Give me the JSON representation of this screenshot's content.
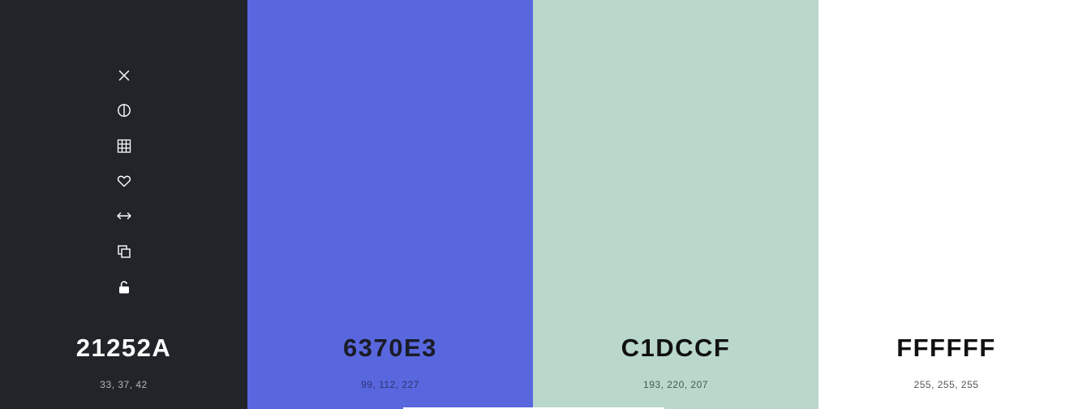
{
  "swatches": [
    {
      "hex": "21252A",
      "rgb": "33, 37, 42",
      "color": "#21252A"
    },
    {
      "hex": "6370E3",
      "rgb": "99, 112, 227",
      "color": "#6370E3"
    },
    {
      "hex": "C1DCCF",
      "rgb": "193, 220, 207",
      "color": "#C1DCCF"
    },
    {
      "hex": "FFFFFF",
      "rgb": "255, 255, 255",
      "color": "#FFFFFF"
    }
  ],
  "toolbar": {
    "icons": [
      "close-icon",
      "contrast-icon",
      "grid-icon",
      "heart-icon",
      "drag-horizontal-icon",
      "copy-icon",
      "unlock-icon"
    ]
  }
}
